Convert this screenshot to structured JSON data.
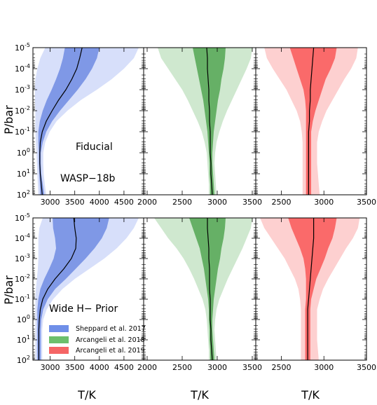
{
  "chart_data": {
    "type": "area",
    "title": "",
    "xlabel": "T/K",
    "ylabel": "P/bar",
    "y_scale": "log",
    "y_inverted": true,
    "ylim": [
      100,
      1e-05
    ],
    "y_tick_labels": [
      "10-5",
      "10-4",
      "10-3",
      "10-2",
      "10-1",
      "100",
      "101",
      "102"
    ],
    "legend": {
      "placement": "lower-left of bottom-left panel",
      "entries": [
        {
          "label": "Sheppard et al. 2017",
          "color": "#6f8fe8"
        },
        {
          "label": "Arcangeli et al. 2018",
          "color": "#6cbf6c"
        },
        {
          "label": "Arcangeli et al. 2019",
          "color": "#f56565"
        }
      ]
    },
    "rows": [
      {
        "annotations": [
          "Fiducial",
          "WASP−18b"
        ]
      },
      {
        "annotations": [
          "Wide H−  Prior"
        ]
      }
    ],
    "columns": [
      {
        "xlim": [
          2650,
          4900
        ],
        "x_tick_labels": [
          "3000",
          "3500",
          "4000",
          "4500"
        ],
        "x_ticks": [
          3000,
          3500,
          4000,
          4500
        ],
        "outer_color": "#d7dffa",
        "inner_color": "#7f98e6",
        "line_color": "#000000"
      },
      {
        "xlim": [
          1950,
          3550
        ],
        "x_tick_labels": [
          "2000",
          "2500",
          "3000",
          "3500"
        ],
        "x_ticks": [
          2000,
          2500,
          3000,
          3500
        ],
        "outer_color": "#cfe8cf",
        "inner_color": "#66b066",
        "line_color": "#000000"
      },
      {
        "xlim": [
          2200,
          3500
        ],
        "x_tick_labels": [
          "2500",
          "3000",
          "3500"
        ],
        "x_ticks": [
          2500,
          3000,
          3500
        ],
        "outer_color": "#fdd0d0",
        "inner_color": "#fa6a6a",
        "line_color": "#000000"
      }
    ],
    "panels": [
      {
        "row": 0,
        "col": 0,
        "name": "Sheppard et al. 2017",
        "logP": [
          -5,
          -4.5,
          -4,
          -3.5,
          -3,
          -2.5,
          -2,
          -1.5,
          -1,
          -0.5,
          0,
          0.5,
          1,
          1.5,
          2
        ],
        "median": [
          3650,
          3600,
          3540,
          3440,
          3320,
          3170,
          3040,
          2920,
          2840,
          2800,
          2790,
          2790,
          2800,
          2820,
          2840
        ],
        "inner_lo": [
          3300,
          3260,
          3200,
          3120,
          3030,
          2930,
          2850,
          2790,
          2760,
          2760,
          2770,
          2770,
          2780,
          2790,
          2800
        ],
        "inner_hi": [
          4000,
          3950,
          3850,
          3720,
          3560,
          3380,
          3200,
          3040,
          2920,
          2850,
          2810,
          2810,
          2820,
          2850,
          2880
        ],
        "outer_lo": [
          2900,
          2800,
          2740,
          2700,
          2690,
          2690,
          2700,
          2700,
          2700,
          2710,
          2720,
          2730,
          2740,
          2750,
          2760
        ],
        "outer_hi": [
          4800,
          4700,
          4500,
          4250,
          3950,
          3620,
          3350,
          3130,
          2990,
          2900,
          2860,
          2860,
          2870,
          2890,
          2920
        ]
      },
      {
        "row": 0,
        "col": 1,
        "name": "Arcangeli et al. 2018",
        "logP": [
          -5,
          -4.5,
          -4,
          -3.5,
          -3,
          -2.5,
          -2,
          -1.5,
          -1,
          -0.5,
          0,
          0.5,
          1,
          1.5,
          2
        ],
        "median": [
          2850,
          2860,
          2860,
          2870,
          2880,
          2880,
          2890,
          2890,
          2900,
          2900,
          2900,
          2910,
          2910,
          2920,
          2930
        ],
        "inner_lo": [
          2650,
          2680,
          2710,
          2740,
          2770,
          2800,
          2820,
          2840,
          2860,
          2870,
          2880,
          2890,
          2890,
          2900,
          2900
        ],
        "inner_hi": [
          3120,
          3110,
          3090,
          3060,
          3040,
          3010,
          2990,
          2970,
          2950,
          2940,
          2930,
          2930,
          2940,
          2950,
          2960
        ],
        "outer_lo": [
          2150,
          2200,
          2300,
          2400,
          2500,
          2580,
          2650,
          2720,
          2780,
          2820,
          2850,
          2860,
          2870,
          2880,
          2880
        ],
        "outer_hi": [
          3500,
          3480,
          3420,
          3350,
          3280,
          3210,
          3140,
          3080,
          3030,
          2990,
          2970,
          2960,
          2970,
          2980,
          2990
        ]
      },
      {
        "row": 0,
        "col": 2,
        "name": "Arcangeli et al. 2019",
        "logP": [
          -5,
          -4.5,
          -4,
          -3.5,
          -3,
          -2.5,
          -2,
          -1.5,
          -1,
          -0.5,
          0,
          0.5,
          1,
          1.5,
          2
        ],
        "median": [
          2880,
          2870,
          2860,
          2850,
          2840,
          2840,
          2830,
          2830,
          2820,
          2820,
          2820,
          2820,
          2820,
          2820,
          2820
        ],
        "inner_lo": [
          2600,
          2640,
          2680,
          2720,
          2760,
          2780,
          2790,
          2790,
          2790,
          2790,
          2790,
          2790,
          2790,
          2790,
          2790
        ],
        "inner_hi": [
          3150,
          3130,
          3080,
          3020,
          2980,
          2940,
          2900,
          2870,
          2850,
          2850,
          2850,
          2850,
          2850,
          2850,
          2850
        ],
        "outer_lo": [
          2300,
          2330,
          2400,
          2480,
          2560,
          2620,
          2680,
          2720,
          2740,
          2750,
          2750,
          2750,
          2750,
          2750,
          2750
        ],
        "outer_hi": [
          3400,
          3380,
          3320,
          3240,
          3170,
          3100,
          3030,
          2980,
          2940,
          2920,
          2920,
          2920,
          2930,
          2940,
          2950
        ]
      },
      {
        "row": 1,
        "col": 0,
        "name": "Sheppard et al. 2017",
        "logP": [
          -5,
          -4.5,
          -4,
          -3.5,
          -3,
          -2.5,
          -2,
          -1.5,
          -1,
          -0.5,
          0,
          0.5,
          1,
          1.5,
          2
        ],
        "median": [
          3480,
          3500,
          3530,
          3520,
          3430,
          3280,
          3100,
          2950,
          2850,
          2800,
          2780,
          2770,
          2770,
          2770,
          2770
        ],
        "inner_lo": [
          3050,
          3060,
          3100,
          3120,
          3070,
          2980,
          2880,
          2800,
          2760,
          2740,
          2740,
          2740,
          2740,
          2740,
          2740
        ],
        "inner_hi": [
          4200,
          4150,
          4050,
          3900,
          3720,
          3520,
          3320,
          3100,
          2950,
          2860,
          2820,
          2810,
          2810,
          2810,
          2810
        ],
        "outer_lo": [
          2850,
          2780,
          2760,
          2760,
          2760,
          2750,
          2730,
          2710,
          2700,
          2700,
          2700,
          2700,
          2700,
          2700,
          2700
        ],
        "outer_hi": [
          4800,
          4700,
          4550,
          4350,
          4100,
          3800,
          3500,
          3250,
          3060,
          2930,
          2860,
          2840,
          2840,
          2840,
          2840
        ]
      },
      {
        "row": 1,
        "col": 1,
        "name": "Arcangeli et al. 2018",
        "logP": [
          -5,
          -4.5,
          -4,
          -3.5,
          -3,
          -2.5,
          -2,
          -1.5,
          -1,
          -0.5,
          0,
          0.5,
          1,
          1.5,
          2
        ],
        "median": [
          2860,
          2860,
          2870,
          2880,
          2880,
          2890,
          2890,
          2890,
          2900,
          2900,
          2900,
          2910,
          2910,
          2920,
          2930
        ],
        "inner_lo": [
          2600,
          2650,
          2700,
          2750,
          2780,
          2810,
          2830,
          2850,
          2870,
          2880,
          2880,
          2890,
          2890,
          2900,
          2900
        ],
        "inner_hi": [
          3120,
          3110,
          3090,
          3060,
          3040,
          3010,
          2990,
          2970,
          2950,
          2940,
          2930,
          2930,
          2940,
          2950,
          2960
        ],
        "outer_lo": [
          2100,
          2200,
          2300,
          2420,
          2520,
          2600,
          2670,
          2730,
          2790,
          2830,
          2850,
          2860,
          2870,
          2880,
          2880
        ],
        "outer_hi": [
          3500,
          3480,
          3420,
          3360,
          3290,
          3220,
          3150,
          3090,
          3030,
          2990,
          2970,
          2960,
          2970,
          2980,
          2990
        ]
      },
      {
        "row": 1,
        "col": 2,
        "name": "Arcangeli et al. 2019",
        "logP": [
          -5,
          -4.5,
          -4,
          -3.5,
          -3,
          -2.5,
          -2,
          -1.5,
          -1,
          -0.5,
          0,
          0.5,
          1,
          1.5,
          2
        ],
        "median": [
          2880,
          2880,
          2880,
          2870,
          2860,
          2850,
          2840,
          2830,
          2820,
          2810,
          2810,
          2810,
          2810,
          2810,
          2810
        ],
        "inner_lo": [
          2580,
          2620,
          2670,
          2720,
          2760,
          2780,
          2790,
          2790,
          2790,
          2780,
          2780,
          2780,
          2780,
          2780,
          2780
        ],
        "inner_hi": [
          3150,
          3130,
          3100,
          3050,
          3010,
          2960,
          2910,
          2880,
          2850,
          2840,
          2840,
          2840,
          2840,
          2840,
          2840
        ],
        "outer_lo": [
          2250,
          2300,
          2380,
          2460,
          2540,
          2600,
          2660,
          2700,
          2720,
          2730,
          2730,
          2730,
          2730,
          2730,
          2730
        ],
        "outer_hi": [
          3420,
          3400,
          3340,
          3260,
          3190,
          3120,
          3050,
          2990,
          2950,
          2920,
          2920,
          2920,
          2920,
          2930,
          2940
        ]
      }
    ]
  }
}
